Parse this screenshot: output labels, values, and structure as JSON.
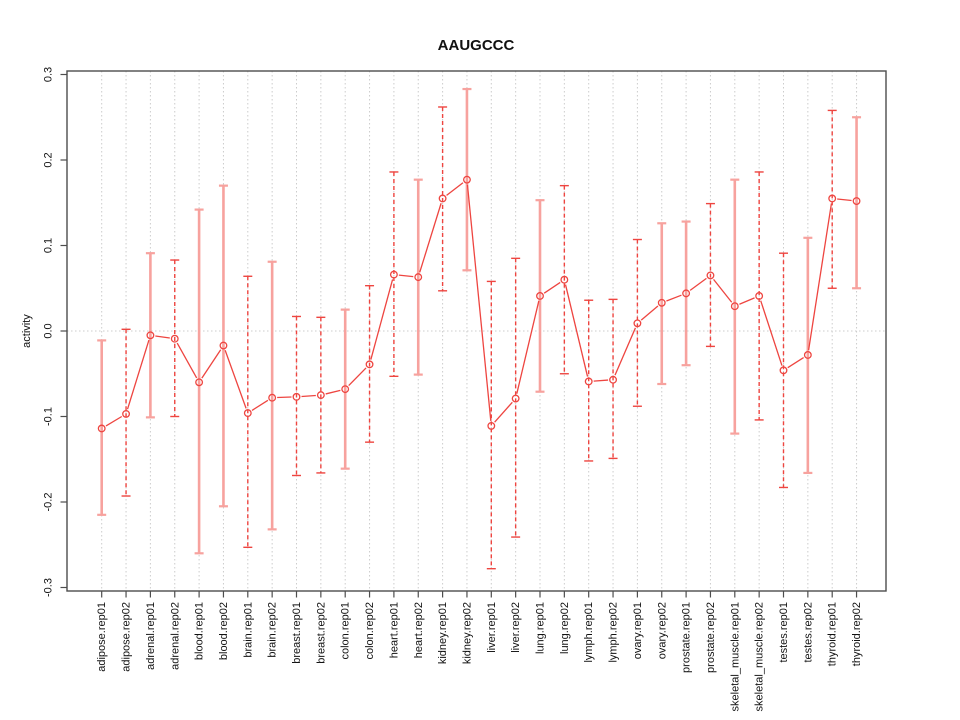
{
  "figure": {
    "title": "AAUGCCC",
    "ylabel": "activity"
  },
  "chart_data": {
    "type": "line",
    "subtype": "points-with-error-bars",
    "title": "AAUGCCC",
    "xlabel": "",
    "ylabel": "activity",
    "ylim": [
      -0.3,
      0.3
    ],
    "yticks": [
      0.3,
      0.2,
      0.1,
      0.0,
      -0.1,
      -0.2,
      -0.3
    ],
    "grid": "vertical-dotted-per-category, horizontal-dotted-zero-line",
    "legend": "none",
    "marker": "open-circle",
    "categories": [
      "adipose.rep01",
      "adipose.rep02",
      "adrenal.rep01",
      "adrenal.rep02",
      "blood.rep01",
      "blood.rep02",
      "brain.rep01",
      "brain.rep02",
      "breast.rep01",
      "breast.rep02",
      "colon.rep01",
      "colon.rep02",
      "heart.rep01",
      "heart.rep02",
      "kidney.rep01",
      "kidney.rep02",
      "liver.rep01",
      "liver.rep02",
      "lung.rep01",
      "lung.rep02",
      "lymph.rep01",
      "lymph.rep02",
      "ovary.rep01",
      "ovary.rep02",
      "prostate.rep01",
      "prostate.rep02",
      "skeletal_muscle.rep01",
      "skeletal_muscle.rep02",
      "testes.rep01",
      "testes.rep02",
      "thyroid.rep01",
      "thyroid.rep02"
    ],
    "series": [
      {
        "name": "activity",
        "values": [
          -0.114,
          -0.097,
          -0.005,
          -0.009,
          -0.06,
          -0.017,
          -0.096,
          -0.078,
          -0.077,
          -0.075,
          -0.068,
          -0.039,
          0.066,
          0.063,
          0.155,
          0.177,
          -0.111,
          -0.079,
          0.041,
          0.06,
          -0.059,
          -0.057,
          0.009,
          0.033,
          0.044,
          0.065,
          0.029,
          0.041,
          -0.046,
          -0.028,
          0.155,
          0.152
        ],
        "error_low": [
          -0.215,
          -0.193,
          -0.101,
          -0.1,
          -0.26,
          -0.205,
          -0.253,
          -0.232,
          -0.169,
          -0.166,
          -0.161,
          -0.13,
          -0.053,
          -0.051,
          0.047,
          0.071,
          -0.278,
          -0.241,
          -0.071,
          -0.05,
          -0.152,
          -0.149,
          -0.088,
          -0.062,
          -0.04,
          -0.018,
          -0.12,
          -0.104,
          -0.183,
          -0.166,
          0.05,
          0.05
        ],
        "error_high": [
          -0.011,
          0.002,
          0.091,
          0.083,
          0.142,
          0.17,
          0.064,
          0.081,
          0.017,
          0.016,
          0.025,
          0.053,
          0.186,
          0.177,
          0.262,
          0.283,
          0.058,
          0.085,
          0.153,
          0.17,
          0.036,
          0.037,
          0.107,
          0.126,
          0.128,
          0.149,
          0.177,
          0.186,
          0.091,
          0.109,
          0.258,
          0.25
        ],
        "bar_styles": [
          "solid",
          "dashed",
          "solid",
          "dashed",
          "solid",
          "solid",
          "dashed",
          "solid",
          "dashed",
          "dashed",
          "solid",
          "dashed",
          "dashed",
          "solid",
          "dashed",
          "solid",
          "dashed",
          "dashed",
          "solid",
          "dashed",
          "dashed",
          "dashed",
          "dashed",
          "solid",
          "solid",
          "dashed",
          "solid",
          "dashed",
          "dashed",
          "solid",
          "dashed",
          "solid"
        ]
      }
    ],
    "colors": {
      "line": "#ee4540",
      "marker": "#ee4540",
      "dashed_bar": "#ee4540",
      "solid_bar": "#f7a29e",
      "grid": "#cccccc",
      "axis": "#4d4d4d",
      "text": "#111111"
    }
  }
}
